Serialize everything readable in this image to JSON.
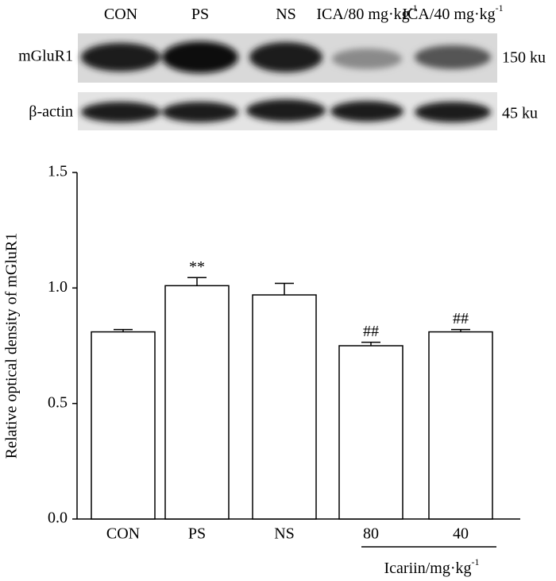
{
  "blot": {
    "lanes": [
      "CON",
      "PS",
      "NS",
      "ICA/80 mg·kg",
      "ICA/40 mg·kg"
    ],
    "lane_sup": [
      null,
      null,
      null,
      "-1",
      "-1"
    ],
    "rows": [
      {
        "label": "mGluR1",
        "size": "150 ku"
      },
      {
        "label": "β-actin",
        "size": "45 ku"
      }
    ]
  },
  "chart_data": {
    "type": "bar",
    "y_label": "Relative optical density of mGluR1",
    "categories": [
      "CON",
      "PS",
      "NS",
      "80",
      "40"
    ],
    "values": [
      0.81,
      1.01,
      0.97,
      0.75,
      0.81
    ],
    "errors": [
      0.01,
      0.035,
      0.05,
      0.015,
      0.01
    ],
    "annotations": [
      null,
      "**",
      null,
      "##",
      "##"
    ],
    "group_label": "Icariin/mg·kg",
    "group_label_sup": "-1",
    "color": "#ffffff",
    "ylim": [
      0,
      1.5
    ],
    "yticks": [
      {
        "value": 0,
        "label": "0.0"
      },
      {
        "value": 0.5,
        "label": "0.5"
      },
      {
        "value": 1,
        "label": "1.0"
      },
      {
        "value": 1.5,
        "label": "1.5"
      }
    ]
  }
}
